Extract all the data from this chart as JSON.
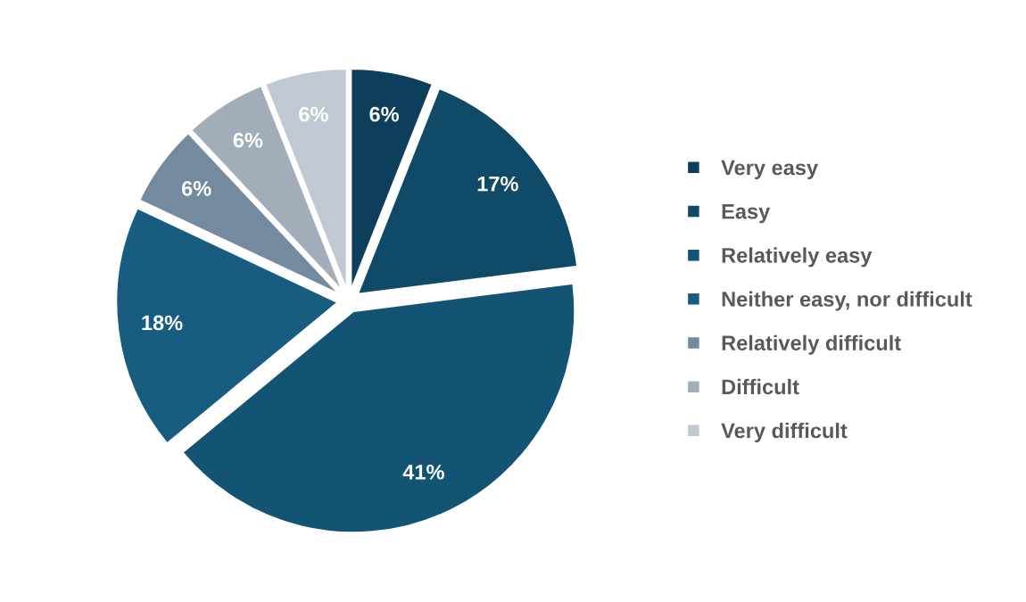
{
  "chart_data": {
    "type": "pie",
    "categories": [
      "Very easy",
      "Easy",
      "Relatively easy",
      "Neither easy, nor difficult",
      "Relatively difficult",
      "Difficult",
      "Very difficult"
    ],
    "values": [
      6,
      17,
      41,
      18,
      6,
      6,
      6
    ],
    "colors": [
      "#0d3f5c",
      "#0f4a68",
      "#135475",
      "#185d80",
      "#748b9f",
      "#a1aeba",
      "#c0c8d1"
    ],
    "value_labels": [
      "6%",
      "17%",
      "41%",
      "18%",
      "6%",
      "6%",
      "6%"
    ],
    "legend": "right"
  }
}
